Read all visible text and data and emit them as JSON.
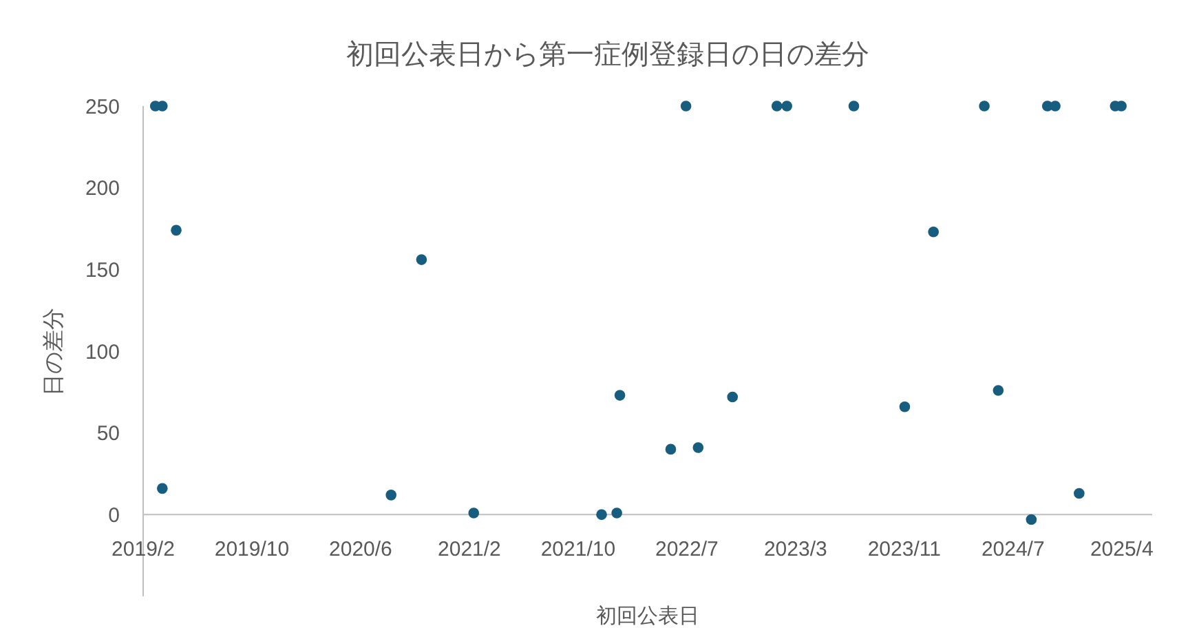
{
  "chart_data": {
    "type": "scatter",
    "title": "初回公表日から第一症例登録日の日の差分",
    "xlabel": "初回公表日",
    "ylabel": "日の差分",
    "marker": "circle",
    "xlim": [
      "2019-02-05",
      "2025-06-13"
    ],
    "xticks": [
      {
        "value": "2019-02-05",
        "label": "2019/2"
      },
      {
        "value": "2019-10-13",
        "label": "2019/10"
      },
      {
        "value": "2020-06-19",
        "label": "2020/6"
      },
      {
        "value": "2021-02-24",
        "label": "2021/2"
      },
      {
        "value": "2021-11-01",
        "label": "2021/10"
      },
      {
        "value": "2022-07-09",
        "label": "2022/7"
      },
      {
        "value": "2023-03-16",
        "label": "2023/3"
      },
      {
        "value": "2023-11-21",
        "label": "2023/11"
      },
      {
        "value": "2024-07-28",
        "label": "2024/7"
      },
      {
        "value": "2025-04-04",
        "label": "2025/4"
      }
    ],
    "ylim": [
      -50,
      250
    ],
    "yticks": [
      0,
      50,
      100,
      150,
      200,
      250
    ],
    "series": [
      {
        "color": "#175d80",
        "x": [
          "2019-03-05",
          "2019-03-21",
          "2019-03-21",
          "2019-04-22",
          "2020-08-28",
          "2020-11-06",
          "2021-03-06",
          "2021-12-25",
          "2022-01-29",
          "2022-02-05",
          "2022-06-02",
          "2022-07-07",
          "2022-08-04",
          "2022-10-22",
          "2023-02-01",
          "2023-02-24",
          "2023-07-28",
          "2023-11-22",
          "2024-01-27",
          "2024-05-23",
          "2024-06-24",
          "2024-09-08",
          "2024-10-15",
          "2024-11-02",
          "2024-12-27",
          "2025-03-20",
          "2025-04-03"
        ],
        "values": [
          250,
          250,
          16,
          174,
          12,
          156,
          1,
          0,
          1,
          73,
          40,
          250,
          41,
          72,
          250,
          250,
          250,
          66,
          173,
          250,
          76,
          -3,
          250,
          250,
          13,
          250,
          250
        ]
      }
    ]
  }
}
